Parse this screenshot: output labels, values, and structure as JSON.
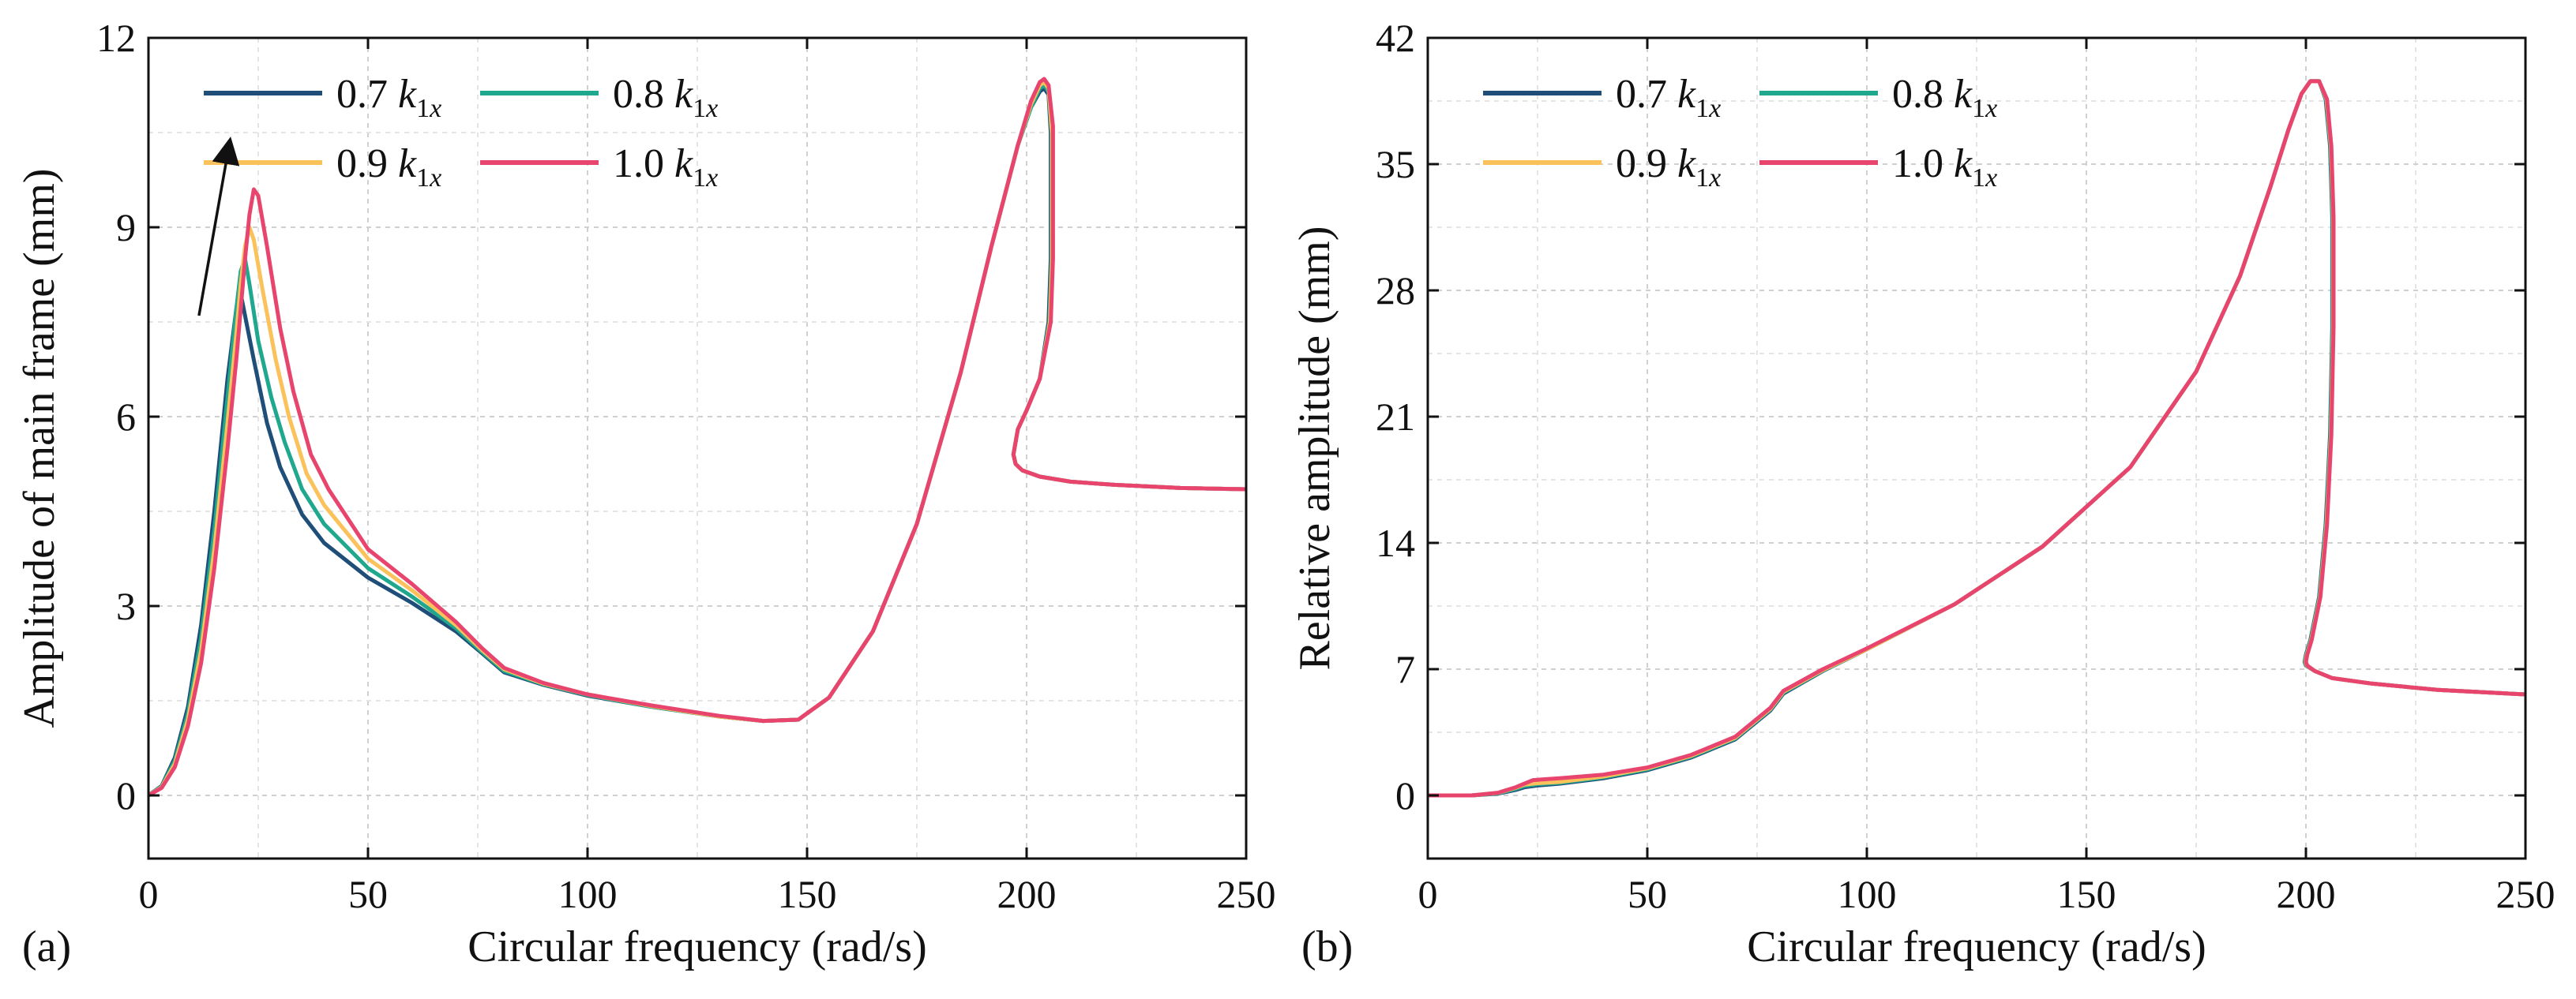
{
  "chart_data": [
    {
      "type": "line",
      "panel_label": "(a)",
      "title": "",
      "xlabel": "Circular frequency (rad/s)",
      "ylabel": "Amplitude of main frame (mm)",
      "xlim": [
        0,
        250
      ],
      "ylim": [
        -1,
        12
      ],
      "xticks": [
        0,
        50,
        100,
        150,
        200,
        250
      ],
      "yticks": [
        0,
        3,
        6,
        9,
        12
      ],
      "grid": true,
      "legend_position": "top-left",
      "annotation": "arrow indicating increasing stiffness",
      "series": [
        {
          "name": "0.7 k1x",
          "color": "#1f4e79",
          "x": [
            0,
            3,
            6,
            9,
            12,
            15,
            18,
            20,
            21,
            22,
            24,
            27,
            30,
            35,
            40,
            50,
            60,
            70,
            76,
            81,
            90,
            100,
            115,
            130,
            140,
            148,
            155,
            165,
            175,
            185,
            192,
            198,
            201,
            203,
            204,
            205,
            205.5,
            205.5,
            205,
            203,
            200,
            198,
            197.5,
            197,
            197.5,
            199,
            203,
            210,
            220,
            235,
            250
          ],
          "y": [
            0,
            0.15,
            0.6,
            1.4,
            2.7,
            4.5,
            6.6,
            7.7,
            7.95,
            7.6,
            6.9,
            5.9,
            5.2,
            4.45,
            4.0,
            3.45,
            3.05,
            2.6,
            2.25,
            1.95,
            1.75,
            1.58,
            1.4,
            1.25,
            1.18,
            1.2,
            1.55,
            2.6,
            4.3,
            6.7,
            8.7,
            10.3,
            10.9,
            11.15,
            11.2,
            11.1,
            10.5,
            8.5,
            7.5,
            6.6,
            6.1,
            5.8,
            5.6,
            5.4,
            5.25,
            5.15,
            5.05,
            4.97,
            4.92,
            4.87,
            4.85
          ]
        },
        {
          "name": "0.8 k1x",
          "color": "#1fa88e",
          "x": [
            0,
            3,
            6,
            9,
            12,
            15,
            18,
            20,
            21,
            22,
            23,
            25,
            28,
            31,
            35,
            40,
            50,
            60,
            70,
            76,
            81,
            90,
            100,
            115,
            130,
            140,
            148,
            155,
            165,
            175,
            185,
            192,
            198,
            201,
            203,
            204,
            205,
            205.7,
            205.7,
            205.2,
            203,
            200,
            198,
            197.5,
            197,
            197.5,
            199,
            203,
            210,
            220,
            235,
            250
          ],
          "y": [
            0,
            0.14,
            0.55,
            1.3,
            2.5,
            4.2,
            6.3,
            7.7,
            8.3,
            8.5,
            8.1,
            7.2,
            6.3,
            5.6,
            4.85,
            4.3,
            3.6,
            3.15,
            2.65,
            2.27,
            1.97,
            1.76,
            1.59,
            1.4,
            1.25,
            1.18,
            1.2,
            1.55,
            2.6,
            4.3,
            6.7,
            8.7,
            10.3,
            10.9,
            11.2,
            11.25,
            11.15,
            10.5,
            8.5,
            7.5,
            6.6,
            6.1,
            5.8,
            5.6,
            5.4,
            5.25,
            5.15,
            5.05,
            4.97,
            4.92,
            4.87,
            4.85
          ]
        },
        {
          "name": "0.9 k1x",
          "color": "#fbc25c",
          "x": [
            0,
            3,
            6,
            9,
            12,
            15,
            18,
            20,
            21,
            22,
            23,
            24,
            26,
            29,
            32,
            36,
            40,
            50,
            60,
            70,
            76,
            81,
            90,
            100,
            115,
            130,
            140,
            148,
            155,
            165,
            175,
            185,
            192,
            198,
            201,
            203,
            204,
            205,
            205.8,
            205.8,
            205.3,
            203,
            200,
            198,
            197.5,
            197,
            197.5,
            199,
            203,
            210,
            220,
            235,
            250
          ],
          "y": [
            0,
            0.13,
            0.5,
            1.2,
            2.3,
            3.9,
            5.9,
            7.3,
            8.1,
            8.7,
            9.0,
            8.8,
            8.0,
            6.9,
            6.0,
            5.1,
            4.6,
            3.75,
            3.25,
            2.7,
            2.3,
            2.0,
            1.77,
            1.6,
            1.41,
            1.25,
            1.18,
            1.2,
            1.55,
            2.6,
            4.3,
            6.7,
            8.7,
            10.3,
            10.95,
            11.25,
            11.3,
            11.2,
            10.5,
            8.5,
            7.5,
            6.6,
            6.1,
            5.8,
            5.6,
            5.4,
            5.25,
            5.15,
            5.05,
            4.97,
            4.92,
            4.87,
            4.85
          ]
        },
        {
          "name": "1.0 k1x",
          "color": "#e8456e",
          "x": [
            0,
            3,
            6,
            9,
            12,
            15,
            18,
            20,
            21,
            22,
            23,
            24,
            25,
            27,
            30,
            33,
            37,
            41,
            50,
            60,
            70,
            76,
            81,
            90,
            100,
            115,
            130,
            140,
            148,
            155,
            165,
            175,
            185,
            192,
            198,
            201,
            203,
            204,
            205,
            206,
            206,
            205.5,
            203,
            200,
            198,
            197.5,
            197,
            197.5,
            199,
            203,
            210,
            220,
            235,
            250
          ],
          "y": [
            0,
            0.12,
            0.45,
            1.1,
            2.1,
            3.6,
            5.5,
            6.9,
            7.7,
            8.5,
            9.2,
            9.6,
            9.5,
            8.7,
            7.4,
            6.4,
            5.4,
            4.85,
            3.9,
            3.35,
            2.75,
            2.33,
            2.02,
            1.78,
            1.6,
            1.42,
            1.26,
            1.18,
            1.2,
            1.55,
            2.6,
            4.3,
            6.7,
            8.7,
            10.3,
            11.0,
            11.3,
            11.35,
            11.25,
            10.6,
            8.5,
            7.5,
            6.6,
            6.1,
            5.8,
            5.6,
            5.4,
            5.25,
            5.15,
            5.05,
            4.97,
            4.92,
            4.87,
            4.85
          ]
        }
      ]
    },
    {
      "type": "line",
      "panel_label": "(b)",
      "title": "",
      "xlabel": "Circular frequency (rad/s)",
      "ylabel": "Relative amplitude (mm)",
      "xlim": [
        0,
        250
      ],
      "ylim": [
        -3.5,
        42
      ],
      "xticks": [
        0,
        50,
        100,
        150,
        200,
        250
      ],
      "yticks": [
        0,
        7,
        14,
        21,
        28,
        35,
        42
      ],
      "grid": true,
      "legend_position": "top-left",
      "series": [
        {
          "name": "0.7 k1x",
          "color": "#1f4e79",
          "x": [
            0,
            10,
            16,
            20,
            22,
            25,
            30,
            40,
            50,
            60,
            70,
            78,
            81,
            90,
            100,
            120,
            140,
            160,
            175,
            185,
            192,
            196,
            199,
            201,
            203,
            204.5,
            205.5,
            206,
            206,
            205.5,
            204.5,
            203,
            201,
            200,
            199.7,
            200,
            202,
            206,
            215,
            230,
            250
          ],
          "y": [
            0,
            0,
            0.1,
            0.3,
            0.45,
            0.55,
            0.65,
            0.95,
            1.4,
            2.1,
            3.1,
            4.7,
            5.65,
            6.9,
            8.1,
            10.6,
            13.8,
            18.2,
            23.5,
            28.8,
            33.8,
            36.9,
            38.9,
            39.6,
            39.6,
            38.6,
            36.0,
            32.0,
            26.0,
            20.0,
            15.0,
            11.0,
            8.6,
            7.8,
            7.4,
            7.2,
            6.9,
            6.5,
            6.2,
            5.85,
            5.6
          ]
        },
        {
          "name": "0.8 k1x",
          "color": "#1fa88e",
          "x": [
            0,
            10,
            16,
            20,
            22,
            25,
            30,
            40,
            50,
            60,
            70,
            78,
            81,
            90,
            100,
            120,
            140,
            160,
            175,
            185,
            192,
            196,
            199,
            201,
            203,
            204.6,
            205.6,
            206.1,
            206.1,
            205.6,
            204.6,
            203.1,
            201.1,
            200.1,
            199.8,
            200.1,
            202,
            206,
            215,
            230,
            250
          ],
          "y": [
            0,
            0,
            0.12,
            0.36,
            0.52,
            0.62,
            0.7,
            1.0,
            1.45,
            2.15,
            3.15,
            4.75,
            5.7,
            6.92,
            8.1,
            10.6,
            13.8,
            18.2,
            23.5,
            28.8,
            33.8,
            36.9,
            38.9,
            39.6,
            39.6,
            38.6,
            36.0,
            32.0,
            26.0,
            20.0,
            15.0,
            11.0,
            8.6,
            7.8,
            7.4,
            7.2,
            6.9,
            6.5,
            6.2,
            5.85,
            5.6
          ]
        },
        {
          "name": "0.9 k1x",
          "color": "#fbc25c",
          "x": [
            0,
            10,
            16,
            20,
            22,
            25,
            30,
            40,
            50,
            60,
            70,
            78,
            81,
            90,
            100,
            120,
            140,
            160,
            175,
            185,
            192,
            196,
            199,
            201,
            203,
            204.7,
            205.7,
            206.2,
            206.2,
            205.7,
            204.7,
            203.2,
            201.2,
            200.2,
            199.9,
            200.2,
            202,
            206,
            215,
            230,
            250
          ],
          "y": [
            0,
            0,
            0.14,
            0.42,
            0.6,
            0.68,
            0.75,
            1.05,
            1.5,
            2.2,
            3.2,
            4.8,
            5.75,
            6.95,
            8.1,
            10.6,
            13.8,
            18.2,
            23.5,
            28.8,
            33.8,
            36.9,
            38.9,
            39.6,
            39.6,
            38.6,
            36.0,
            32.0,
            26.0,
            20.0,
            15.0,
            11.0,
            8.6,
            7.8,
            7.4,
            7.2,
            6.9,
            6.5,
            6.2,
            5.85,
            5.6
          ]
        },
        {
          "name": "1.0 k1x",
          "color": "#e8456e",
          "x": [
            0,
            10,
            16,
            20,
            22,
            24,
            27,
            30,
            40,
            50,
            60,
            70,
            78,
            81,
            90,
            100,
            120,
            140,
            160,
            175,
            185,
            192,
            196,
            199,
            201,
            203,
            204.8,
            205.8,
            206.3,
            206.3,
            205.8,
            204.8,
            203.3,
            201.3,
            200.3,
            200,
            200.3,
            202,
            206,
            215,
            230,
            250
          ],
          "y": [
            0,
            0,
            0.15,
            0.45,
            0.65,
            0.85,
            0.9,
            0.95,
            1.15,
            1.55,
            2.25,
            3.25,
            4.85,
            5.8,
            7.0,
            8.15,
            10.6,
            13.8,
            18.2,
            23.5,
            28.8,
            33.8,
            36.9,
            38.9,
            39.6,
            39.6,
            38.6,
            36.0,
            32.0,
            26.0,
            20.0,
            15.0,
            11.0,
            8.6,
            7.8,
            7.4,
            7.2,
            6.9,
            6.5,
            6.2,
            5.85,
            5.6
          ]
        }
      ]
    }
  ]
}
